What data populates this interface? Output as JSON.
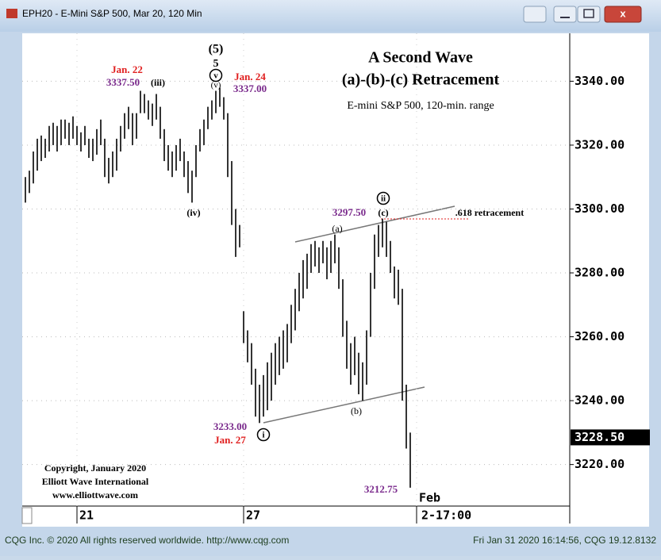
{
  "window": {
    "title": "EPH20 - E-Mini S&P 500, Mar 20, 120 Min",
    "status_left": "CQG Inc. © 2020 All rights reserved worldwide. http://www.cqg.com",
    "status_right": "Fri Jan 31 2020 16:14:56, CQG 19.12.8132"
  },
  "chart_data": {
    "type": "range",
    "color": "#000000",
    "grid": true,
    "x": [
      0,
      1,
      2,
      3,
      4,
      5,
      6,
      7,
      8,
      9,
      10,
      11,
      12,
      13,
      14,
      15,
      16,
      17,
      18,
      19,
      20,
      21,
      22,
      23,
      24,
      25,
      26,
      27,
      28,
      29,
      30,
      31,
      32,
      33,
      34,
      35,
      36,
      37,
      38,
      39,
      40,
      41,
      42,
      43,
      44,
      45,
      46,
      47,
      48,
      49,
      50,
      51,
      52,
      53,
      54,
      55,
      56,
      57,
      58,
      59,
      60,
      61,
      62,
      63,
      64,
      65,
      66,
      67,
      68,
      69,
      70,
      71,
      72,
      73,
      74,
      75,
      76,
      77,
      78,
      79,
      80,
      81,
      82,
      83,
      84,
      85,
      86,
      87,
      88,
      89,
      90,
      91,
      92,
      93,
      94,
      95,
      96,
      97
    ],
    "high": [
      3310,
      3312,
      3318,
      3322,
      3323,
      3322,
      3326,
      3327,
      3326,
      3328,
      3328,
      3327,
      3329,
      3326,
      3324,
      3326,
      3322,
      3322,
      3325,
      3328,
      3322,
      3316,
      3318,
      3322,
      3326,
      3330,
      3332,
      3330,
      3330,
      3337,
      3336,
      3334,
      3333,
      3336,
      3332,
      3325,
      3320,
      3318,
      3320,
      3322,
      3318,
      3315,
      3312,
      3320,
      3325,
      3328,
      3332,
      3334,
      3337,
      3338,
      3335,
      3330,
      3315,
      3300,
      3295,
      3268,
      3262,
      3258,
      3250,
      3245,
      3248,
      3252,
      3255,
      3258,
      3260,
      3262,
      3264,
      3270,
      3275,
      3280,
      3284,
      3286,
      3289,
      3290,
      3288,
      3290,
      3288,
      3290,
      3292,
      3288,
      3278,
      3265,
      3258,
      3260,
      3255,
      3252,
      3262,
      3280,
      3292,
      3295,
      3297,
      3296,
      3290,
      3282,
      3281,
      3275,
      3245,
      3230
    ],
    "low": [
      3302,
      3305,
      3308,
      3312,
      3315,
      3316,
      3318,
      3320,
      3318,
      3320,
      3322,
      3320,
      3322,
      3320,
      3318,
      3320,
      3316,
      3315,
      3317,
      3320,
      3310,
      3308,
      3310,
      3312,
      3318,
      3322,
      3325,
      3320,
      3322,
      3330,
      3330,
      3328,
      3326,
      3328,
      3322,
      3315,
      3312,
      3310,
      3312,
      3315,
      3310,
      3305,
      3302,
      3310,
      3318,
      3320,
      3325,
      3328,
      3330,
      3332,
      3328,
      3310,
      3295,
      3285,
      3288,
      3258,
      3252,
      3245,
      3235,
      3233,
      3235,
      3237,
      3240,
      3245,
      3248,
      3250,
      3252,
      3258,
      3262,
      3268,
      3272,
      3275,
      3280,
      3282,
      3280,
      3283,
      3278,
      3280,
      3283,
      3275,
      3260,
      3250,
      3245,
      3248,
      3242,
      3240,
      3245,
      3260,
      3275,
      3285,
      3288,
      3285,
      3280,
      3272,
      3270,
      3240,
      3225,
      3212.75
    ],
    "xlim": [
      -0.8,
      137.2
    ],
    "xticks": [
      {
        "value": 13,
        "label": "21"
      },
      {
        "value": 55,
        "label": "27"
      },
      {
        "value": 98.6,
        "label": "Feb"
      }
    ],
    "time_label": "2-17:00",
    "ylim": [
      3207,
      3355
    ],
    "yticks": [
      {
        "value": 3220,
        "label": "3220.00"
      },
      {
        "value": 3240,
        "label": "3240.00"
      },
      {
        "value": 3260,
        "label": "3260.00"
      },
      {
        "value": 3280,
        "label": "3280.00"
      },
      {
        "value": 3300,
        "label": "3300.00"
      },
      {
        "value": 3320,
        "label": "3320.00"
      },
      {
        "value": 3340,
        "label": "3340.00"
      }
    ],
    "last_price": {
      "value": 3228.5,
      "label": "3228.50"
    },
    "annotations": [
      {
        "text": "A Second Wave",
        "color": "#000000"
      },
      {
        "text": "(a)-(b)-(c) Retracement",
        "color": "#000000"
      },
      {
        "text": "E-mini S&P 500, 120-min. range",
        "color": "#000000"
      },
      {
        "text": "Jan. 22",
        "color": "#e02020"
      },
      {
        "text": "3337.50",
        "color": "#7a2a8c"
      },
      {
        "text": "(iii)",
        "color": "#000000"
      },
      {
        "text": "(5)",
        "color": "#000000"
      },
      {
        "text": "5",
        "color": "#000000"
      },
      {
        "text": "v",
        "color": "#000000",
        "circled": true
      },
      {
        "text": "(v)",
        "color": "#000000"
      },
      {
        "text": "Jan. 24",
        "color": "#e02020"
      },
      {
        "text": "3337.00",
        "color": "#7a2a8c"
      },
      {
        "text": "(iv)",
        "color": "#000000"
      },
      {
        "text": "ii",
        "color": "#000000",
        "circled": true
      },
      {
        "text": "3297.50",
        "color": "#7a2a8c"
      },
      {
        "text": "(c)",
        "color": "#000000"
      },
      {
        "text": ".618 retracement",
        "color": "#000000"
      },
      {
        "text": "(a)",
        "color": "#000000"
      },
      {
        "text": "(b)",
        "color": "#000000"
      },
      {
        "text": "3233.00",
        "color": "#7a2a8c"
      },
      {
        "text": "Jan. 27",
        "color": "#e02020"
      },
      {
        "text": "i",
        "color": "#000000",
        "circled": true
      },
      {
        "text": "3212.75",
        "color": "#7a2a8c"
      },
      {
        "text": "Copyright, January 2020",
        "color": "#000000"
      },
      {
        "text": "Elliott Wave International",
        "color": "#000000"
      },
      {
        "text": "www.elliottwave.com",
        "color": "#000000"
      }
    ]
  }
}
